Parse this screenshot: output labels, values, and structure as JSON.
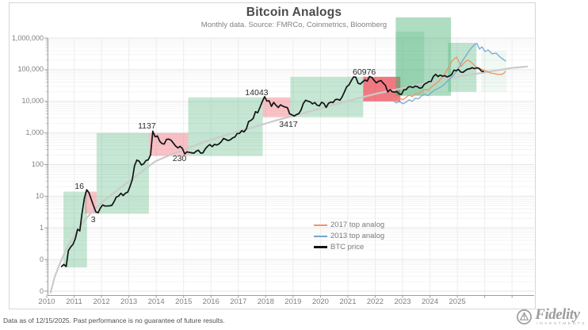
{
  "chart_data": {
    "type": "line",
    "title": "Bitcoin Analogs",
    "subtitle": "Monthly data.  Source: FMRCo, Coinmetrics, Bloomberg",
    "x_axis": {
      "tick_years": [
        2010,
        2011,
        2012,
        2013,
        2014,
        2015,
        2016,
        2017,
        2018,
        2019,
        2020,
        2021,
        2022,
        2023,
        2024,
        2025
      ],
      "unlabeled_tick_years": [
        2026,
        2027
      ],
      "min_year": 2010,
      "max_year": 2027.8
    },
    "y_axis": {
      "scale": "log",
      "grid": true,
      "tick_labels": [
        "1,000,000",
        "100,000",
        "10,000",
        "1,000",
        "100",
        "10",
        "1",
        "0",
        "0"
      ],
      "tick_exponents": [
        6,
        5,
        4,
        3,
        2,
        1,
        0,
        -1,
        -2
      ]
    },
    "legend": {
      "position": "inside-bottom-center",
      "entries": [
        {
          "label": "2017 top analog",
          "color": "#ee9366"
        },
        {
          "label": "2013 top analog",
          "color": "#7aa6cf"
        },
        {
          "label": "BTC price",
          "color": "#131313"
        }
      ]
    },
    "annotations": [
      {
        "text": "16",
        "year": 2011.19,
        "value": 21
      },
      {
        "text": "3",
        "year": 2011.7,
        "value": 1.85
      },
      {
        "text": "1137",
        "year": 2013.66,
        "value": 1600
      },
      {
        "text": "230",
        "year": 2014.85,
        "value": 150
      },
      {
        "text": "14043",
        "year": 2017.67,
        "value": 19000
      },
      {
        "text": "3417",
        "year": 2018.83,
        "value": 1850
      },
      {
        "text": "60976",
        "year": 2021.6,
        "value": 85000
      }
    ],
    "bands": [
      {
        "x0": 2010.61,
        "x1": 2011.47,
        "v0": 0.056,
        "v1": 14,
        "color": "#3fae6e",
        "alpha": 0.3
      },
      {
        "x0": 2011.39,
        "x1": 2011.82,
        "v0": 2.8,
        "v1": 14,
        "color": "#ec5f6b",
        "alpha": 0.38
      },
      {
        "x0": 2011.82,
        "x1": 2013.73,
        "v0": 2.8,
        "v1": 1000,
        "color": "#3fae6e",
        "alpha": 0.3
      },
      {
        "x0": 2013.73,
        "x1": 2015.17,
        "v0": 188,
        "v1": 1000,
        "color": "#ec5f6b",
        "alpha": 0.38
      },
      {
        "x0": 2015.17,
        "x1": 2017.89,
        "v0": 188,
        "v1": 13300,
        "color": "#3fae6e",
        "alpha": 0.3
      },
      {
        "x0": 2017.89,
        "x1": 2018.9,
        "v0": 3160,
        "v1": 13300,
        "color": "#ec5f6b",
        "alpha": 0.38
      },
      {
        "x0": 2018.9,
        "x1": 2021.56,
        "v0": 3160,
        "v1": 59600,
        "color": "#3fae6e",
        "alpha": 0.3
      },
      {
        "x0": 2021.56,
        "x1": 2022.92,
        "v0": 10000,
        "v1": 59600,
        "color": "#e8212e",
        "alpha": 0.6
      },
      {
        "x0": 2022.75,
        "x1": 2024.77,
        "v0": 15000,
        "v1": 4500000,
        "color": "#3fae6e",
        "alpha": 0.42
      },
      {
        "x0": 2022.75,
        "x1": 2023.79,
        "v0": 15000,
        "v1": 1600000,
        "color": "#3fae6e",
        "alpha": 0.2
      },
      {
        "x0": 2024.66,
        "x1": 2025.7,
        "v0": 20000,
        "v1": 708000,
        "color": "#3fae6e",
        "alpha": 0.32
      },
      {
        "x0": 2025.87,
        "x1": 2026.8,
        "v0": 20000,
        "v1": 400000,
        "color": "#3fae6e",
        "alpha": 0.08
      }
    ],
    "series": [
      {
        "name": "trend",
        "color": "#cbcbcb",
        "width": 2.2,
        "points": [
          [
            2010.14,
            0.009
          ],
          [
            2010.3,
            0.03
          ],
          [
            2010.52,
            0.09
          ],
          [
            2010.75,
            0.25
          ],
          [
            2011.01,
            0.56
          ],
          [
            2011.3,
            1.4
          ],
          [
            2011.65,
            3.2
          ],
          [
            2012.0,
            6.3
          ],
          [
            2012.34,
            10.6
          ],
          [
            2012.7,
            19
          ],
          [
            2013.06,
            31.6
          ],
          [
            2013.5,
            63
          ],
          [
            2013.96,
            126
          ],
          [
            2014.5,
            200
          ],
          [
            2015.09,
            316
          ],
          [
            2015.7,
            500
          ],
          [
            2016.33,
            750
          ],
          [
            2017.0,
            1120
          ],
          [
            2017.63,
            1585
          ],
          [
            2018.3,
            2400
          ],
          [
            2019.05,
            3548
          ],
          [
            2019.8,
            5300
          ],
          [
            2020.52,
            7943
          ],
          [
            2021.3,
            12000
          ],
          [
            2022.08,
            17800
          ],
          [
            2022.9,
            25000
          ],
          [
            2023.7,
            35500
          ],
          [
            2024.5,
            50000
          ],
          [
            2025.32,
            66800
          ],
          [
            2026.1,
            85000
          ],
          [
            2026.94,
            112000
          ],
          [
            2027.55,
            126000
          ]
        ]
      },
      {
        "name": "2017 top analog",
        "color": "#ee9366",
        "width": 1.3,
        "points": [
          [
            2022.66,
            11900
          ],
          [
            2022.77,
            10600
          ],
          [
            2022.89,
            12600
          ],
          [
            2023.01,
            11200
          ],
          [
            2023.12,
            13300
          ],
          [
            2023.24,
            15800
          ],
          [
            2023.35,
            14100
          ],
          [
            2023.47,
            17800
          ],
          [
            2023.58,
            16800
          ],
          [
            2023.7,
            21100
          ],
          [
            2023.82,
            23700
          ],
          [
            2023.93,
            22400
          ],
          [
            2024.05,
            28200
          ],
          [
            2024.16,
            33500
          ],
          [
            2024.28,
            39800
          ],
          [
            2024.39,
            50100
          ],
          [
            2024.51,
            66800
          ],
          [
            2024.6,
            89100
          ],
          [
            2024.68,
            119000
          ],
          [
            2024.77,
            168000
          ],
          [
            2024.86,
            211000
          ],
          [
            2024.97,
            251000
          ],
          [
            2025.06,
            178000
          ],
          [
            2025.14,
            126000
          ],
          [
            2025.23,
            158000
          ],
          [
            2025.32,
            188000
          ],
          [
            2025.4,
            200000
          ],
          [
            2025.52,
            168000
          ],
          [
            2025.64,
            133000
          ],
          [
            2025.78,
            112000
          ],
          [
            2025.93,
            100000
          ],
          [
            2026.07,
            89000
          ],
          [
            2026.21,
            79000
          ],
          [
            2026.36,
            75000
          ],
          [
            2026.5,
            71000
          ],
          [
            2026.62,
            71000
          ],
          [
            2026.71,
            79000
          ],
          [
            2026.76,
            89000
          ]
        ]
      },
      {
        "name": "2013 top analog",
        "color": "#7aa6cf",
        "width": 1.3,
        "points": [
          [
            2022.66,
            10600
          ],
          [
            2022.77,
            8900
          ],
          [
            2022.89,
            10000
          ],
          [
            2023.01,
            8400
          ],
          [
            2023.12,
            9400
          ],
          [
            2023.24,
            11200
          ],
          [
            2023.35,
            10000
          ],
          [
            2023.47,
            12600
          ],
          [
            2023.58,
            11900
          ],
          [
            2023.7,
            15000
          ],
          [
            2023.82,
            16800
          ],
          [
            2023.93,
            15000
          ],
          [
            2024.05,
            18800
          ],
          [
            2024.16,
            22400
          ],
          [
            2024.28,
            25100
          ],
          [
            2024.39,
            28200
          ],
          [
            2024.51,
            33500
          ],
          [
            2024.62,
            42200
          ],
          [
            2024.74,
            53100
          ],
          [
            2024.86,
            66800
          ],
          [
            2024.97,
            89100
          ],
          [
            2025.09,
            133000
          ],
          [
            2025.2,
            200000
          ],
          [
            2025.32,
            282000
          ],
          [
            2025.43,
            398000
          ],
          [
            2025.55,
            531000
          ],
          [
            2025.66,
            650000
          ],
          [
            2025.72,
            668000
          ],
          [
            2025.81,
            447000
          ],
          [
            2025.9,
            531000
          ],
          [
            2026.01,
            376000
          ],
          [
            2026.13,
            422000
          ],
          [
            2026.27,
            316000
          ],
          [
            2026.42,
            335000
          ],
          [
            2026.56,
            251000
          ],
          [
            2026.68,
            211000
          ],
          [
            2026.76,
            188000
          ]
        ]
      },
      {
        "name": "BTC price",
        "color": "#131313",
        "width": 1.7,
        "monthly": {
          "start_year": 2010,
          "start_month": 7,
          "values": [
            0.06,
            0.07,
            0.06,
            0.19,
            0.25,
            0.3,
            0.45,
            0.9,
            0.8,
            3.0,
            8.7,
            16,
            13,
            8.0,
            5.0,
            3.2,
            3.0,
            4.2,
            5.3,
            4.9,
            4.9,
            5.0,
            5.1,
            6.7,
            9.4,
            10.1,
            12.4,
            10.5,
            12.5,
            13.5,
            20.4,
            33.4,
            93,
            139,
            128,
            97,
            106,
            135,
            141,
            204,
            1137,
            757,
            805,
            550,
            458,
            446,
            627,
            640,
            589,
            481,
            387,
            338,
            378,
            320,
            217,
            254,
            244,
            236,
            230,
            264,
            284,
            230,
            236,
            314,
            377,
            430,
            368,
            437,
            416,
            448,
            531,
            673,
            624,
            575,
            610,
            700,
            745,
            963,
            970,
            1180,
            1080,
            1350,
            2300,
            2480,
            2875,
            4703,
            4360,
            6468,
            9916,
            14043,
            10221,
            10397,
            6926,
            9240,
            7494,
            6404,
            7780,
            7037,
            6625,
            6317,
            4017,
            3742,
            3417,
            3854,
            4105,
            5320,
            8574,
            10817,
            10085,
            9630,
            8308,
            9199,
            7569,
            7193,
            9350,
            8599,
            6438,
            8658,
            9461,
            9137,
            11351,
            11655,
            10784,
            13797,
            19695,
            29001,
            33114,
            45137,
            58918,
            57750,
            37332,
            35040,
            41626,
            47166,
            43790,
            60976,
            56987,
            46306,
            38483,
            43193,
            45539,
            37714,
            31792,
            19785,
            23307,
            20050,
            19432,
            20495,
            17168,
            16548,
            23139,
            23147,
            28478,
            29268,
            27219,
            30477,
            29230,
            25932,
            26967,
            34668,
            37718,
            42265,
            42580,
            61198,
            71333,
            60637,
            67491,
            62678,
            64619,
            58969,
            63329,
            70215,
            96449,
            93429,
            102405,
            84349,
            82549,
            94207,
            104598,
            107135,
            115758,
            108236,
            114056,
            109900,
            91500,
            87000
          ]
        }
      }
    ]
  },
  "footer": {
    "text": "Data as of 12/15/2025. Past performance is no guarantee of future results."
  },
  "branding": {
    "name": "Fidelity",
    "tagline": "INVESTMENTS"
  }
}
